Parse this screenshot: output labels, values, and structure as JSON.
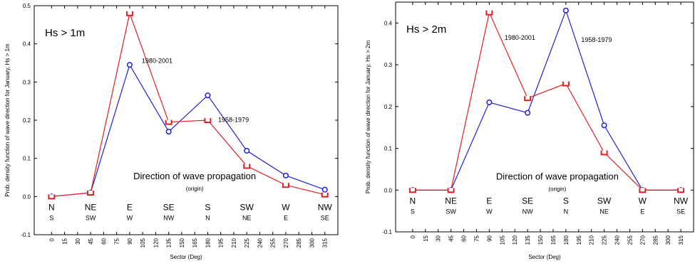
{
  "chart_data": [
    {
      "type": "line",
      "panel_label": "Hs > 1m",
      "ylabel": "Prob. density function of wave direction for January, Hs > 1m",
      "xlabel": "Sector (Deg)",
      "x_ticks": [
        0,
        15,
        30,
        45,
        60,
        75,
        90,
        105,
        120,
        135,
        150,
        165,
        180,
        195,
        210,
        225,
        240,
        255,
        270,
        285,
        300,
        315
      ],
      "y_ticks": [
        -0.1,
        0.0,
        0.1,
        0.2,
        0.3,
        0.4,
        0.5
      ],
      "y_tick_labels": [
        "-0.1",
        "0.0",
        "0.1",
        "0.2",
        "0.3",
        "0.4",
        "0.5"
      ],
      "xlim": [
        -20,
        330
      ],
      "ylim": [
        -0.1,
        0.5
      ],
      "grid": false,
      "series": [
        {
          "label": "1958-1979",
          "color": "#1f1fd6",
          "marker": "circle",
          "x": [
            0,
            45,
            90,
            135,
            180,
            225,
            270,
            315
          ],
          "y": [
            0.0,
            0.01,
            0.345,
            0.17,
            0.265,
            0.12,
            0.055,
            0.018
          ]
        },
        {
          "label": "1980-2001",
          "color": "#e02020",
          "marker": "bracket",
          "x": [
            0,
            45,
            90,
            135,
            180,
            225,
            270,
            315
          ],
          "y": [
            0.0,
            0.01,
            0.48,
            0.195,
            0.2,
            0.08,
            0.03,
            0.005
          ]
        }
      ],
      "annotations": [
        {
          "text": "1980-2001",
          "x": 104,
          "y": 0.35
        },
        {
          "text": "1958-1979",
          "x": 192,
          "y": 0.195
        }
      ],
      "note": {
        "title": "Direction of wave propagation",
        "subtitle": "(origin)",
        "x": 165,
        "y": 0.045
      },
      "compass": [
        {
          "x": 0,
          "dir": "N",
          "origin": "S"
        },
        {
          "x": 45,
          "dir": "NE",
          "origin": "SW"
        },
        {
          "x": 90,
          "dir": "E",
          "origin": "W"
        },
        {
          "x": 135,
          "dir": "SE",
          "origin": "NW"
        },
        {
          "x": 180,
          "dir": "S",
          "origin": "N"
        },
        {
          "x": 225,
          "dir": "SW",
          "origin": "NE"
        },
        {
          "x": 270,
          "dir": "W",
          "origin": "E"
        },
        {
          "x": 315,
          "dir": "NW",
          "origin": "SE"
        }
      ]
    },
    {
      "type": "line",
      "panel_label": "Hs > 2m",
      "ylabel": "Prob. density function of wave direction for January, Hs > 2m",
      "xlabel": "Sector (Deg)",
      "x_ticks": [
        0,
        15,
        30,
        45,
        60,
        75,
        90,
        105,
        120,
        135,
        150,
        165,
        180,
        195,
        210,
        225,
        240,
        255,
        270,
        285,
        300,
        315
      ],
      "y_ticks": [
        -0.1,
        0.0,
        0.1,
        0.2,
        0.3,
        0.4
      ],
      "y_tick_labels": [
        "-0.1",
        "0.0",
        "0.1",
        "0.2",
        "0.3",
        "0.4"
      ],
      "xlim": [
        -20,
        330
      ],
      "ylim": [
        -0.1,
        0.45
      ],
      "grid": false,
      "series": [
        {
          "label": "1958-1979",
          "color": "#1f1fd6",
          "marker": "circle",
          "x": [
            0,
            45,
            90,
            135,
            180,
            225,
            270,
            315
          ],
          "y": [
            0.0,
            0.0,
            0.21,
            0.185,
            0.43,
            0.155,
            0.0,
            0.0
          ]
        },
        {
          "label": "1980-2001",
          "color": "#e02020",
          "marker": "bracket",
          "x": [
            0,
            45,
            90,
            135,
            180,
            225,
            270,
            315
          ],
          "y": [
            0.0,
            0.0,
            0.425,
            0.22,
            0.255,
            0.09,
            0.0,
            0.0
          ]
        }
      ],
      "annotations": [
        {
          "text": "1980-2001",
          "x": 108,
          "y": 0.36
        },
        {
          "text": "1958-1979",
          "x": 198,
          "y": 0.355
        }
      ],
      "note": {
        "title": "Direction of wave propagation",
        "subtitle": "(origin)",
        "x": 170,
        "y": 0.025
      },
      "compass": [
        {
          "x": 0,
          "dir": "N",
          "origin": "S"
        },
        {
          "x": 45,
          "dir": "NE",
          "origin": "SW"
        },
        {
          "x": 90,
          "dir": "E",
          "origin": "W"
        },
        {
          "x": 135,
          "dir": "SE",
          "origin": "NW"
        },
        {
          "x": 180,
          "dir": "S",
          "origin": "N"
        },
        {
          "x": 225,
          "dir": "SW",
          "origin": "NE"
        },
        {
          "x": 270,
          "dir": "W",
          "origin": "E"
        },
        {
          "x": 315,
          "dir": "NW",
          "origin": "SE"
        }
      ]
    }
  ]
}
